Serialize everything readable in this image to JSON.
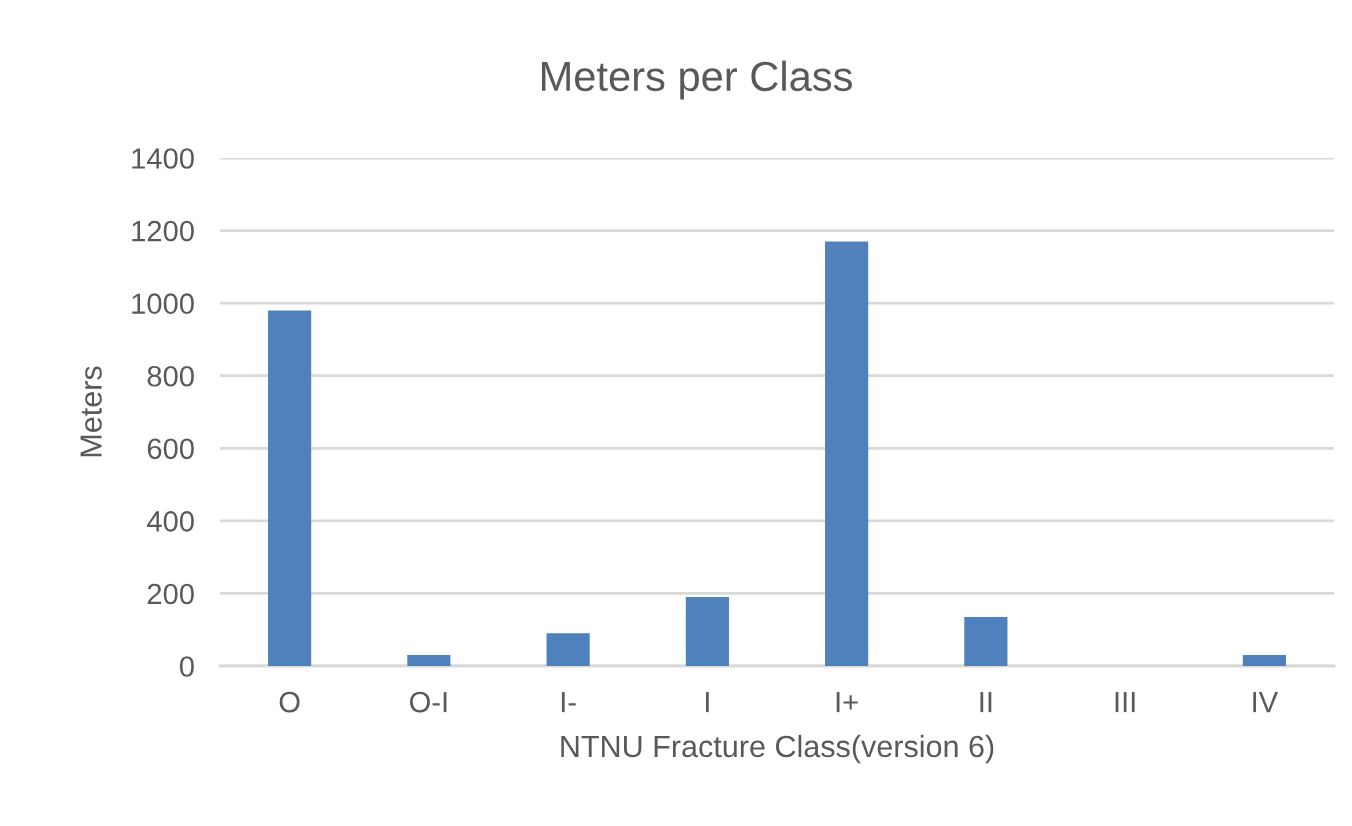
{
  "chart_data": {
    "type": "bar",
    "title": "Meters per Class",
    "xlabel": "NTNU Fracture Class(version 6)",
    "ylabel": "Meters",
    "categories": [
      "O",
      "O-I",
      "I-",
      "I",
      "I+",
      "II",
      "III",
      "IV"
    ],
    "values": [
      980,
      30,
      90,
      190,
      1170,
      135,
      0,
      30
    ],
    "color": "#4f81bd",
    "ylim": [
      0,
      1400
    ],
    "yticks": [
      0,
      200,
      400,
      600,
      800,
      1000,
      1200,
      1400
    ],
    "grid": "y",
    "legend": false
  }
}
